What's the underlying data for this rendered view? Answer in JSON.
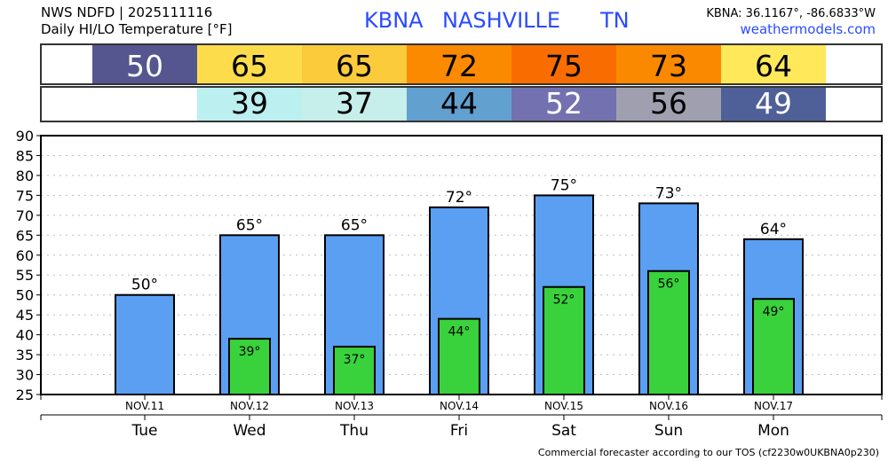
{
  "header": {
    "line1": "NWS NDFD | 2025111116",
    "line2": "Daily HI/LO Temperature [°F]",
    "station": "KBNA",
    "city": "NASHVILLE",
    "state": "TN",
    "coords": "KBNA: 36.1167°, -86.6833°W",
    "site": "weathermodels.com",
    "title_color": "#2a4bff"
  },
  "footer": "Commercial forecaster according to our TOS (cf2230w0UKBNA0p230)",
  "chart_data": {
    "type": "bar",
    "categories": [
      "Tue",
      "Wed",
      "Thu",
      "Fri",
      "Sat",
      "Sun",
      "Mon"
    ],
    "dates": [
      "NOV.11",
      "NOV.12",
      "NOV.13",
      "NOV.14",
      "NOV.15",
      "NOV.16",
      "NOV.17"
    ],
    "series": [
      {
        "name": "HI",
        "values": [
          50,
          65,
          65,
          72,
          75,
          73,
          64
        ],
        "color": "#5a9ff2",
        "labels": [
          "50°",
          "65°",
          "65°",
          "72°",
          "75°",
          "73°",
          "64°"
        ],
        "cell_colors": [
          "#555590",
          "#fddc4c",
          "#fccb3c",
          "#fb8a00",
          "#f96d00",
          "#fb8900",
          "#ffe85a"
        ],
        "cell_text_colors": [
          "#fff",
          "#000",
          "#000",
          "#000",
          "#000",
          "#000",
          "#000"
        ]
      },
      {
        "name": "LO",
        "values": [
          null,
          39,
          37,
          44,
          52,
          56,
          49
        ],
        "color": "#39d23c",
        "labels": [
          "",
          "39°",
          "37°",
          "44°",
          "52°",
          "56°",
          "49°"
        ],
        "cell_colors": [
          null,
          "#bcefef",
          "#c6eeea",
          "#62a0d0",
          "#7471b0",
          "#a09fb0",
          "#4f5f98"
        ],
        "cell_text_colors": [
          "#000",
          "#000",
          "#000",
          "#000",
          "#fff",
          "#000",
          "#fff"
        ]
      }
    ],
    "ylim": [
      25,
      90
    ],
    "yticks": [
      25,
      30,
      35,
      40,
      45,
      50,
      55,
      60,
      65,
      70,
      75,
      80,
      85,
      90
    ],
    "grid": true
  }
}
